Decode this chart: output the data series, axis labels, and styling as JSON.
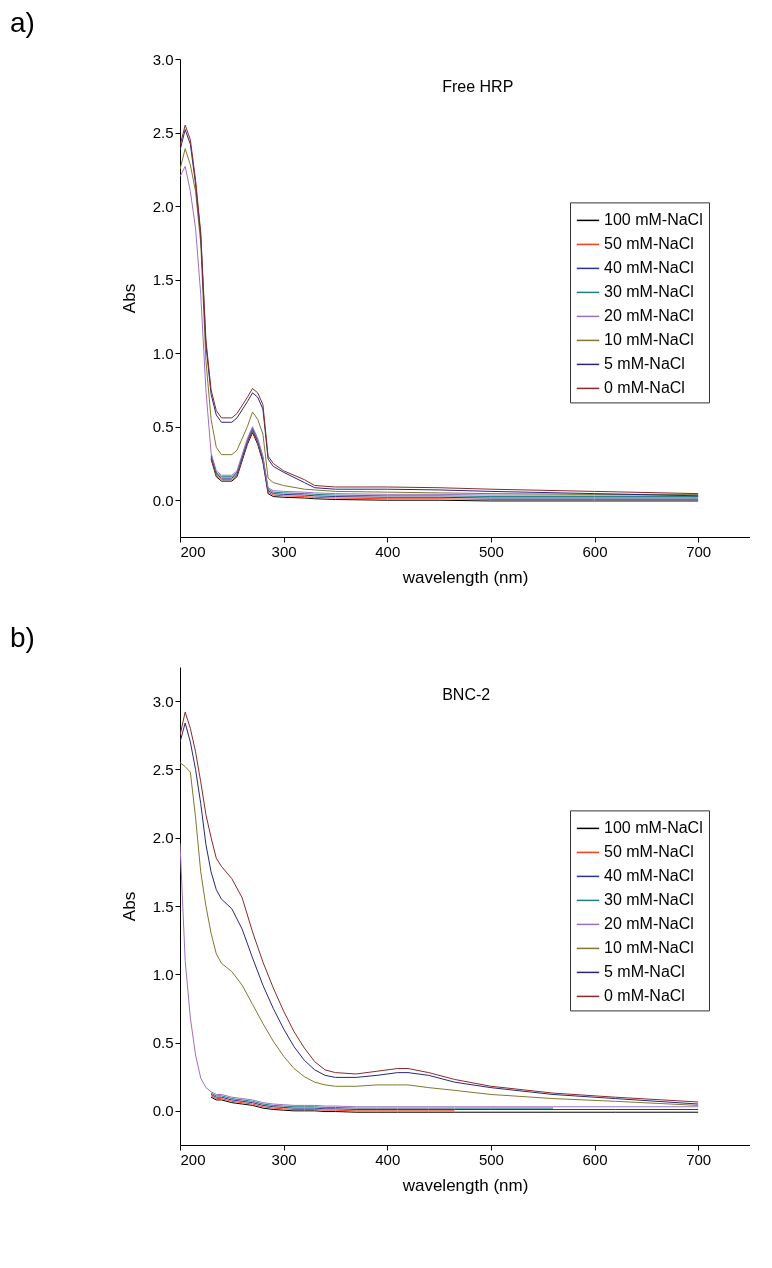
{
  "chart_data": [
    {
      "type": "line",
      "title": "a)",
      "annotations": [
        "Free HRP"
      ],
      "xlabel": "wavelength (nm)",
      "ylabel": "Abs",
      "legend": "right",
      "grid": false,
      "xlim": [
        200,
        750
      ],
      "xticks": [
        200,
        300,
        400,
        500,
        600,
        700
      ],
      "ylim": [
        -0.25,
        3.0
      ],
      "yticks": [
        {
          "value": 0,
          "label": "0.0"
        },
        {
          "value": 0.5,
          "label": "0.5"
        },
        {
          "value": 1,
          "label": "1.0"
        },
        {
          "value": 1.5,
          "label": "1.5"
        },
        {
          "value": 2,
          "label": "2.0"
        },
        {
          "value": 2.5,
          "label": "2.5"
        },
        {
          "value": 3,
          "label": "3.0"
        }
      ],
      "x": [
        200,
        205,
        210,
        215,
        220,
        225,
        230,
        235,
        240,
        250,
        255,
        265,
        270,
        275,
        280,
        285,
        290,
        300,
        320,
        330,
        350,
        400,
        450,
        500,
        600,
        700
      ],
      "series": [
        {
          "name": "100 mM-NaCl",
          "color": "#000000",
          "values": [
            null,
            null,
            null,
            null,
            null,
            null,
            0.28,
            0.16,
            0.13,
            0.13,
            0.16,
            0.38,
            0.46,
            0.38,
            0.26,
            0.045,
            0.025,
            0.02,
            0.015,
            0.01,
            0.005,
            0,
            0,
            -0.005,
            -0.005,
            -0.005
          ]
        },
        {
          "name": "50 mM-NaCl",
          "color": "#ff3b1f",
          "values": [
            null,
            null,
            null,
            null,
            null,
            null,
            0.29,
            0.17,
            0.14,
            0.14,
            0.17,
            0.39,
            0.47,
            0.39,
            0.27,
            0.055,
            0.035,
            0.03,
            0.025,
            0.02,
            0.015,
            0.01,
            0.01,
            0.005,
            0.005,
            0.005
          ]
        },
        {
          "name": "40 mM-NaCl",
          "color": "#2e3192",
          "values": [
            null,
            null,
            null,
            null,
            null,
            null,
            0.3,
            0.18,
            0.15,
            0.15,
            0.18,
            0.4,
            0.48,
            0.4,
            0.28,
            0.065,
            0.045,
            0.04,
            0.035,
            0.03,
            0.025,
            0.02,
            0.02,
            0.015,
            0.015,
            0.015
          ]
        },
        {
          "name": "30 mM-NaCl",
          "color": "#1f7f7f",
          "values": [
            null,
            null,
            null,
            null,
            null,
            null,
            0.31,
            0.19,
            0.16,
            0.16,
            0.19,
            0.41,
            0.49,
            0.41,
            0.29,
            0.075,
            0.055,
            0.05,
            0.045,
            0.04,
            0.035,
            0.03,
            0.03,
            0.025,
            0.025,
            0.025
          ]
        },
        {
          "name": "20 mM-NaCl",
          "color": "#a070c0",
          "values": [
            2.2,
            2.27,
            2.1,
            1.85,
            1.4,
            0.75,
            0.32,
            0.2,
            0.17,
            0.17,
            0.2,
            0.42,
            0.5,
            0.42,
            0.3,
            0.085,
            0.065,
            0.06,
            0.055,
            0.05,
            0.045,
            0.04,
            0.04,
            0.035,
            0.035,
            0.035
          ]
        },
        {
          "name": "10 mM-NaCl",
          "color": "#807830",
          "values": [
            2.25,
            2.39,
            2.28,
            2.1,
            1.75,
            0.95,
            0.55,
            0.36,
            0.31,
            0.31,
            0.34,
            0.5,
            0.6,
            0.55,
            0.45,
            0.15,
            0.12,
            0.1,
            0.075,
            0.07,
            0.06,
            0.055,
            0.05,
            0.045,
            0.04,
            0.04
          ]
        },
        {
          "name": "5 mM-NaCl",
          "color": "#28287a",
          "values": [
            2.38,
            2.52,
            2.42,
            2.15,
            1.8,
            1.06,
            0.72,
            0.58,
            0.53,
            0.53,
            0.56,
            0.67,
            0.73,
            0.7,
            0.62,
            0.28,
            0.23,
            0.19,
            0.12,
            0.085,
            0.075,
            0.075,
            0.07,
            0.06,
            0.045,
            0.03
          ]
        },
        {
          "name": "0 mM-NaCl",
          "color": "#8b2a2a",
          "values": [
            2.41,
            2.55,
            2.45,
            2.18,
            1.82,
            1.09,
            0.75,
            0.61,
            0.56,
            0.56,
            0.59,
            0.7,
            0.76,
            0.73,
            0.65,
            0.3,
            0.25,
            0.2,
            0.14,
            0.1,
            0.09,
            0.09,
            0.085,
            0.075,
            0.06,
            0.045
          ]
        }
      ]
    },
    {
      "type": "line",
      "title": "b)",
      "annotations": [
        "BNC-2"
      ],
      "xlabel": "wavelength (nm)",
      "ylabel": "Abs",
      "legend": "right",
      "grid": false,
      "xlim": [
        200,
        750
      ],
      "xticks": [
        200,
        300,
        400,
        500,
        600,
        700
      ],
      "ylim": [
        -0.25,
        3.25
      ],
      "yticks": [
        {
          "value": 0,
          "label": "0.0"
        },
        {
          "value": 0.5,
          "label": "0.5"
        },
        {
          "value": 1,
          "label": "1.0"
        },
        {
          "value": 1.5,
          "label": "1.5"
        },
        {
          "value": 2,
          "label": "2.0"
        },
        {
          "value": 2.5,
          "label": "2.5"
        },
        {
          "value": 3,
          "label": "3.0"
        }
      ],
      "x": [
        200,
        205,
        210,
        215,
        220,
        225,
        230,
        235,
        240,
        250,
        260,
        270,
        280,
        290,
        300,
        310,
        320,
        330,
        340,
        350,
        370,
        390,
        410,
        420,
        440,
        465,
        500,
        560,
        620,
        700
      ],
      "series": [
        {
          "name": "100 mM-NaCl",
          "color": "#000000",
          "values": [
            null,
            null,
            null,
            null,
            null,
            null,
            0.1,
            0.08,
            0.08,
            0.06,
            0.05,
            0.04,
            0.02,
            0.01,
            0.005,
            0,
            0,
            0,
            -0.005,
            -0.005,
            -0.01,
            -0.01,
            -0.01,
            -0.01,
            -0.01,
            -0.01,
            -0.01,
            -0.01,
            -0.01,
            -0.01
          ]
        },
        {
          "name": "50 mM-NaCl",
          "color": "#ff3b1f",
          "values": [
            null,
            null,
            null,
            null,
            null,
            null,
            0.11,
            0.09,
            0.09,
            0.07,
            0.06,
            0.05,
            0.03,
            0.02,
            0.015,
            0.01,
            0.01,
            0.01,
            0.005,
            0.005,
            0,
            0,
            0,
            0,
            0,
            0,
            null,
            null,
            null,
            null
          ]
        },
        {
          "name": "40 mM-NaCl",
          "color": "#2e3192",
          "values": [
            null,
            null,
            null,
            null,
            null,
            null,
            0.12,
            0.1,
            0.1,
            0.08,
            0.07,
            0.06,
            0.04,
            0.03,
            0.025,
            0.02,
            0.02,
            0.02,
            0.015,
            0.015,
            0.01,
            0.01,
            0.01,
            0.01,
            0.01,
            0.01,
            0.01,
            0.01,
            0.01,
            0.01
          ]
        },
        {
          "name": "30 mM-NaCl",
          "color": "#1f7f7f",
          "values": [
            null,
            null,
            null,
            null,
            null,
            null,
            0.13,
            0.11,
            0.11,
            0.09,
            0.08,
            0.07,
            0.05,
            0.04,
            0.035,
            0.03,
            0.03,
            0.03,
            0.025,
            0.025,
            0.02,
            0.02,
            0.02,
            0.02,
            0.02,
            0.02,
            0.02,
            0.02,
            null,
            null
          ]
        },
        {
          "name": "20 mM-NaCl",
          "color": "#a070c0",
          "values": [
            1.96,
            1.1,
            0.68,
            0.41,
            0.24,
            0.17,
            0.14,
            0.12,
            0.12,
            0.1,
            0.09,
            0.08,
            0.06,
            0.05,
            0.045,
            0.04,
            0.04,
            0.04,
            0.035,
            0.035,
            0.03,
            0.03,
            0.03,
            0.03,
            0.03,
            0.03,
            0.03,
            0.03,
            0.03,
            0.03
          ]
        },
        {
          "name": "10 mM-NaCl",
          "color": "#807830",
          "values": [
            2.55,
            2.52,
            2.48,
            2.15,
            1.75,
            1.5,
            1.3,
            1.15,
            1.08,
            1.02,
            0.92,
            0.78,
            0.64,
            0.51,
            0.4,
            0.31,
            0.25,
            0.21,
            0.19,
            0.18,
            0.18,
            0.19,
            0.19,
            0.19,
            0.17,
            0.15,
            0.12,
            0.09,
            0.07,
            0.04
          ]
        },
        {
          "name": "5 mM-NaCl",
          "color": "#28287a",
          "values": [
            2.7,
            2.84,
            2.7,
            2.5,
            2.25,
            1.95,
            1.75,
            1.62,
            1.55,
            1.48,
            1.33,
            1.12,
            0.92,
            0.75,
            0.6,
            0.47,
            0.37,
            0.3,
            0.26,
            0.245,
            0.245,
            0.26,
            0.28,
            0.28,
            0.26,
            0.21,
            0.17,
            0.12,
            0.09,
            0.05
          ]
        },
        {
          "name": "0 mM-NaCl",
          "color": "#8b2a2a",
          "values": [
            2.75,
            2.92,
            2.8,
            2.63,
            2.41,
            2.17,
            2.0,
            1.85,
            1.79,
            1.7,
            1.56,
            1.31,
            1.09,
            0.9,
            0.73,
            0.58,
            0.46,
            0.36,
            0.3,
            0.28,
            0.27,
            0.29,
            0.31,
            0.31,
            0.28,
            0.23,
            0.18,
            0.13,
            0.1,
            0.065
          ]
        }
      ]
    }
  ]
}
